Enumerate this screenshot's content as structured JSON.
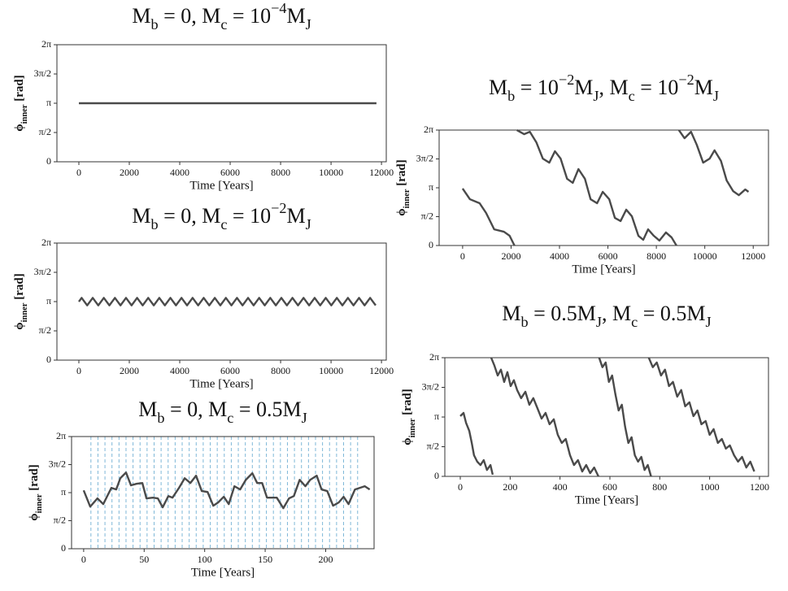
{
  "chart_data": [
    {
      "type": "line",
      "title": [
        {
          "text": "M"
        },
        {
          "text": "b",
          "style": "sub"
        },
        {
          "text": " = 0, M"
        },
        {
          "text": "c",
          "style": "sub"
        },
        {
          "text": " = 10"
        },
        {
          "text": "−4",
          "style": "sup"
        },
        {
          "text": "M"
        },
        {
          "text": "J",
          "style": "sub"
        }
      ],
      "xlabel": "Time [Years]",
      "ylabel": [
        {
          "text": "ϕ"
        },
        {
          "text": "inner",
          "style": "sub"
        },
        {
          "text": " [rad]"
        }
      ],
      "color": "#4a4a4a",
      "x": [
        0,
        11800
      ],
      "values": [
        3.1416,
        3.1416
      ],
      "xlim": [
        -870,
        12190
      ],
      "xticks": [
        0,
        2000,
        4000,
        6000,
        8000,
        10000,
        12000
      ],
      "ylim": [
        0,
        6.2832
      ],
      "yticks": [
        0,
        {
          "value": 1.5708,
          "label": "π/2"
        },
        {
          "value": 3.1416,
          "label": "π"
        },
        {
          "value": 4.7124,
          "label": "3π/2"
        },
        {
          "value": 6.2832,
          "label": "2π"
        }
      ]
    },
    {
      "type": "line",
      "title": [
        {
          "text": "M"
        },
        {
          "text": "b",
          "style": "sub"
        },
        {
          "text": " = 0, M"
        },
        {
          "text": "c",
          "style": "sub"
        },
        {
          "text": " = 10"
        },
        {
          "text": "−2",
          "style": "sup"
        },
        {
          "text": "M"
        },
        {
          "text": "J",
          "style": "sub"
        }
      ],
      "xlabel": "Time [Years]",
      "ylabel": [
        {
          "text": "ϕ"
        },
        {
          "text": "inner",
          "style": "sub"
        },
        {
          "text": " [rad]"
        }
      ],
      "color": "#4a4a4a",
      "x": [
        0,
        110,
        220,
        330,
        440,
        550,
        660,
        770,
        880,
        990,
        1100,
        1210,
        1320,
        1430,
        1540,
        1650,
        1760,
        1870,
        1980,
        2090,
        2200,
        2310,
        2420,
        2530,
        2640,
        2750,
        2860,
        2970,
        3080,
        3190,
        3300,
        3410,
        3520,
        3630,
        3740,
        3850,
        3960,
        4070,
        4180,
        4290,
        4400,
        4510,
        4620,
        4730,
        4840,
        4950,
        5060,
        5170,
        5280,
        5390,
        5500,
        5610,
        5720,
        5830,
        5940,
        6050,
        6160,
        6270,
        6380,
        6490,
        6600,
        6710,
        6820,
        6930,
        7040,
        7150,
        7260,
        7370,
        7480,
        7590,
        7700,
        7810,
        7920,
        8030,
        8140,
        8250,
        8360,
        8470,
        8580,
        8690,
        8800,
        8910,
        9020,
        9130,
        9240,
        9350,
        9460,
        9570,
        9680,
        9790,
        9900,
        10010,
        10120,
        10230,
        10340,
        10450,
        10560,
        10670,
        10780,
        10890,
        11000,
        11110,
        11220,
        11330,
        11440,
        11550,
        11660,
        11770
      ],
      "values": [
        3.14,
        3.34,
        3.14,
        2.94,
        3.14,
        3.34,
        3.14,
        2.94,
        3.14,
        3.34,
        3.14,
        2.94,
        3.14,
        3.34,
        3.14,
        2.94,
        3.14,
        3.34,
        3.14,
        2.94,
        3.14,
        3.34,
        3.14,
        2.94,
        3.14,
        3.34,
        3.14,
        2.94,
        3.14,
        3.34,
        3.14,
        2.94,
        3.14,
        3.34,
        3.14,
        2.94,
        3.14,
        3.34,
        3.14,
        2.94,
        3.14,
        3.34,
        3.14,
        2.94,
        3.14,
        3.34,
        3.14,
        2.94,
        3.14,
        3.34,
        3.14,
        2.94,
        3.14,
        3.34,
        3.14,
        2.94,
        3.14,
        3.34,
        3.14,
        2.94,
        3.14,
        3.34,
        3.14,
        2.94,
        3.14,
        3.34,
        3.14,
        2.94,
        3.14,
        3.34,
        3.14,
        2.94,
        3.14,
        3.34,
        3.14,
        2.94,
        3.14,
        3.34,
        3.14,
        2.94,
        3.14,
        3.34,
        3.14,
        2.94,
        3.14,
        3.34,
        3.14,
        2.94,
        3.14,
        3.34,
        3.14,
        2.94,
        3.14,
        3.34,
        3.14,
        2.94,
        3.14,
        3.34,
        3.14,
        2.94,
        3.14,
        3.34,
        3.14,
        2.94,
        3.14,
        3.34,
        3.14,
        2.94
      ],
      "xlim": [
        -870,
        12190
      ],
      "xticks": [
        0,
        2000,
        4000,
        6000,
        8000,
        10000,
        12000
      ],
      "ylim": [
        0,
        6.2832
      ],
      "yticks": [
        0,
        {
          "value": 1.5708,
          "label": "π/2"
        },
        {
          "value": 3.1416,
          "label": "π"
        },
        {
          "value": 4.7124,
          "label": "3π/2"
        },
        {
          "value": 6.2832,
          "label": "2π"
        }
      ]
    },
    {
      "type": "line",
      "title": [
        {
          "text": "M"
        },
        {
          "text": "b",
          "style": "sub"
        },
        {
          "text": " = 0, M"
        },
        {
          "text": "c",
          "style": "sub"
        },
        {
          "text": " = 0.5M"
        },
        {
          "text": "J",
          "style": "sub"
        }
      ],
      "xlabel": "Time [Years]",
      "ylabel": [
        {
          "text": "ϕ"
        },
        {
          "text": "inner",
          "style": "sub"
        },
        {
          "text": " [rad]"
        }
      ],
      "color": "#4a4a4a",
      "vline_color": "#7fb8d8",
      "vlines": [
        6,
        11.8,
        17.6,
        23.4,
        29.2,
        35,
        40.8,
        46.6,
        52.4,
        58.2,
        64,
        69.8,
        75.6,
        81.4,
        87.2,
        93,
        98.8,
        104.6,
        110.4,
        116.2,
        122,
        127.8,
        133.6,
        139.4,
        145.2,
        151,
        156.8,
        162.6,
        168.4,
        174.2,
        180,
        185.8,
        191.6,
        197.4,
        203.2,
        209,
        214.8,
        220.6,
        226.4
      ],
      "x": [
        0,
        5.4,
        11.4,
        16.2,
        22.9,
        26.9,
        30.3,
        35.0,
        39.1,
        43.8,
        48.5,
        51.9,
        57.2,
        61.3,
        65.3,
        70.0,
        73.4,
        78.8,
        83.5,
        88.2,
        92.9,
        97.6,
        102.4,
        107.1,
        111.1,
        115.8,
        119.9,
        124.6,
        129.3,
        134.0,
        139.4,
        143.4,
        147.5,
        151.5,
        155.6,
        159.6,
        165.0,
        169.7,
        173.7,
        178.5,
        183.2,
        187.2,
        192.6,
        196.6,
        201.3,
        206.1,
        210.8,
        214.8,
        218.9,
        224.2,
        232.3,
        236.4
      ],
      "values": [
        3.27,
        2.36,
        2.82,
        2.5,
        3.41,
        3.32,
        3.95,
        4.27,
        3.55,
        3.64,
        3.68,
        2.82,
        2.86,
        2.82,
        2.32,
        2.95,
        2.86,
        3.41,
        3.95,
        3.68,
        4.09,
        3.23,
        3.18,
        2.41,
        2.59,
        2.91,
        2.5,
        3.5,
        3.32,
        3.86,
        4.23,
        3.68,
        3.68,
        2.86,
        2.86,
        2.86,
        2.27,
        2.82,
        2.95,
        3.86,
        3.5,
        3.86,
        4.09,
        3.32,
        3.23,
        2.41,
        2.59,
        2.91,
        2.5,
        3.32,
        3.5,
        3.32
      ],
      "xlim": [
        -10,
        240
      ],
      "xticks": [
        0,
        50,
        100,
        150,
        200
      ],
      "ylim": [
        0,
        6.2832
      ],
      "yticks": [
        0,
        {
          "value": 1.5708,
          "label": "π/2"
        },
        {
          "value": 3.1416,
          "label": "π"
        },
        {
          "value": 4.7124,
          "label": "3π/2"
        },
        {
          "value": 6.2832,
          "label": "2π"
        }
      ]
    },
    {
      "type": "line",
      "title": [
        {
          "text": "M"
        },
        {
          "text": "b",
          "style": "sub"
        },
        {
          "text": " = 10"
        },
        {
          "text": "−2",
          "style": "sup"
        },
        {
          "text": "M"
        },
        {
          "text": "J",
          "style": "sub"
        },
        {
          "text": ", M"
        },
        {
          "text": "c",
          "style": "sub"
        },
        {
          "text": " = 10"
        },
        {
          "text": "−2",
          "style": "sup"
        },
        {
          "text": "M"
        },
        {
          "text": "J",
          "style": "sub"
        }
      ],
      "xlabel": "Time [Years]",
      "ylabel": [
        {
          "text": "ϕ"
        },
        {
          "text": "inner",
          "style": "sub"
        },
        {
          "text": " [rad]"
        }
      ],
      "color": "#4a4a4a",
      "x": [
        0,
        301,
        702,
        970,
        1304,
        1706,
        1940,
        2140,
        null,
        2241,
        2542,
        2776,
        3043,
        3311,
        3579,
        3813,
        4047,
        4314,
        4548,
        4783,
        5050,
        5284,
        5552,
        5786,
        6054,
        6288,
        6522,
        6756,
        6990,
        7258,
        7458,
        7659,
        7893,
        8127,
        8395,
        8629,
        8829,
        null,
        8930,
        9164,
        9431,
        9666,
        9933,
        10201,
        10401,
        10669,
        10903,
        11171,
        11405,
        11672,
        11806
      ],
      "values": [
        3.1,
        2.52,
        2.3,
        1.77,
        0.88,
        0.75,
        0.53,
        0,
        null,
        6.28,
        6.06,
        6.19,
        5.62,
        4.73,
        4.51,
        5.13,
        4.73,
        3.63,
        3.41,
        4.16,
        3.63,
        2.52,
        2.3,
        2.92,
        2.52,
        1.5,
        1.33,
        1.95,
        1.59,
        0.53,
        0.31,
        0.88,
        0.53,
        0.27,
        0.71,
        0.44,
        0,
        null,
        6.28,
        5.84,
        6.19,
        5.49,
        4.51,
        4.73,
        5.18,
        4.6,
        3.54,
        2.96,
        2.74,
        3.05,
        2.92
      ],
      "xlim": [
        -970,
        12630
      ],
      "xticks": [
        0,
        2000,
        4000,
        6000,
        8000,
        10000,
        12000
      ],
      "ylim": [
        0,
        6.2832
      ],
      "yticks": [
        0,
        {
          "value": 1.5708,
          "label": "π/2"
        },
        {
          "value": 3.1416,
          "label": "π"
        },
        {
          "value": 4.7124,
          "label": "3π/2"
        },
        {
          "value": 6.2832,
          "label": "2π"
        }
      ]
    },
    {
      "type": "line",
      "title": [
        {
          "text": "M"
        },
        {
          "text": "b",
          "style": "sub"
        },
        {
          "text": " = 0.5M"
        },
        {
          "text": "J",
          "style": "sub"
        },
        {
          "text": ", M"
        },
        {
          "text": "c",
          "style": "sub"
        },
        {
          "text": " = 0.5M"
        },
        {
          "text": "J",
          "style": "sub"
        }
      ],
      "xlabel": "Time [Years]",
      "ylabel": [
        {
          "text": "ϕ"
        },
        {
          "text": "inner",
          "style": "sub"
        },
        {
          "text": " [rad]"
        }
      ],
      "color": "#4a4a4a",
      "x": [
        0,
        13,
        23,
        36,
        46,
        55,
        68,
        81,
        94,
        107,
        121,
        130,
        null,
        124,
        137,
        150,
        163,
        176,
        189,
        202,
        215,
        228,
        244,
        261,
        277,
        293,
        309,
        326,
        342,
        358,
        375,
        391,
        407,
        423,
        440,
        456,
        472,
        489,
        505,
        521,
        537,
        554,
        null,
        557,
        570,
        583,
        596,
        609,
        622,
        635,
        648,
        661,
        674,
        687,
        700,
        713,
        726,
        739,
        752,
        765,
        null,
        756,
        772,
        788,
        805,
        821,
        837,
        853,
        870,
        886,
        902,
        919,
        935,
        951,
        967,
        984,
        1000,
        1016,
        1033,
        1049,
        1065,
        1081,
        1098,
        1114,
        1130,
        1147,
        1163,
        1179
      ],
      "values": [
        3.19,
        3.36,
        2.84,
        2.41,
        1.77,
        1.12,
        0.78,
        0.6,
        0.86,
        0.34,
        0.6,
        0.09,
        null,
        6.28,
        5.86,
        5.34,
        5.65,
        5.0,
        5.52,
        4.78,
        5.09,
        4.57,
        4.14,
        4.48,
        3.79,
        4.14,
        3.62,
        3.06,
        3.36,
        2.76,
        3.02,
        2.2,
        1.77,
        1.98,
        1.12,
        0.6,
        0.86,
        0.26,
        0.6,
        0.17,
        0.47,
        0,
        null,
        6.28,
        5.78,
        6.03,
        5.0,
        5.34,
        4.35,
        3.49,
        3.79,
        2.63,
        1.77,
        2.07,
        1.12,
        0.78,
        1.03,
        0.34,
        0.6,
        0,
        null,
        6.28,
        5.78,
        6.03,
        5.34,
        5.65,
        4.78,
        5.0,
        4.22,
        4.57,
        3.71,
        3.92,
        3.19,
        3.49,
        2.76,
        2.93,
        2.2,
        2.5,
        1.77,
        1.98,
        1.47,
        1.64,
        1.12,
        0.78,
        1.03,
        0.47,
        0.78,
        0.26
      ],
      "xlim": [
        -62,
        1236
      ],
      "xticks": [
        0,
        200,
        400,
        600,
        800,
        1000,
        1200
      ],
      "ylim": [
        0,
        6.2832
      ],
      "yticks": [
        0,
        {
          "value": 1.5708,
          "label": "π/2"
        },
        {
          "value": 3.1416,
          "label": "π"
        },
        {
          "value": 4.7124,
          "label": "3π/2"
        },
        {
          "value": 6.2832,
          "label": "2π"
        }
      ]
    }
  ]
}
